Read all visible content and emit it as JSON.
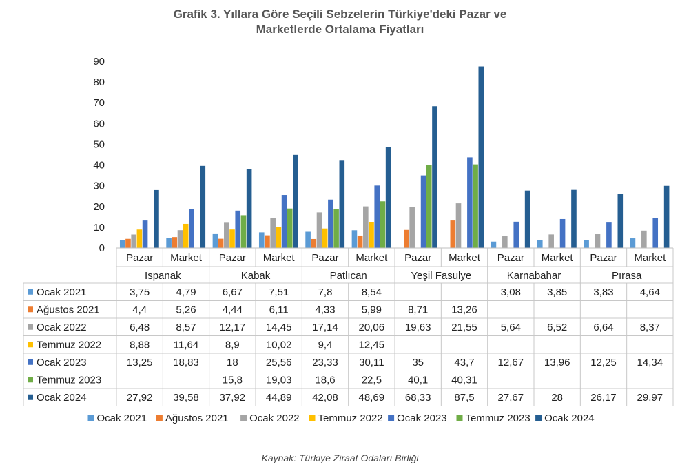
{
  "title_line1": "Grafik 3. Yıllara Göre Seçili Sebzelerin Türkiye'deki Pazar ve",
  "title_line2": "Marketlerde Ortalama Fiyatları",
  "source": "Kaynak: Türkiye Ziraat Odaları Birliği",
  "chart_data": {
    "type": "bar",
    "title": "Grafik 3. Yıllara Göre Seçili Sebzelerin Türkiye'deki Pazar ve Marketlerde Ortalama Fiyatları",
    "ylim": [
      0,
      90
    ],
    "yticks": [
      0,
      10,
      20,
      30,
      40,
      50,
      60,
      70,
      80,
      90
    ],
    "grid": false,
    "legend": "bottom",
    "groups": [
      "Ispanak",
      "Kabak",
      "Patlıcan",
      "Yeşil Fasulye",
      "Karnabahar",
      "Pırasa"
    ],
    "subcategories": [
      "Pazar",
      "Market",
      "Pazar",
      "Market",
      "Pazar",
      "Market",
      "Pazar",
      "Market",
      "Pazar",
      "Market",
      "Pazar",
      "Market"
    ],
    "series": [
      {
        "name": "Ocak 2021",
        "color": "#5B9BD5",
        "values": [
          3.75,
          4.79,
          6.67,
          7.51,
          7.8,
          8.54,
          null,
          null,
          3.08,
          3.85,
          3.83,
          4.64
        ],
        "labels": [
          "3,75",
          "4,79",
          "6,67",
          "7,51",
          "7,8",
          "8,54",
          "",
          "",
          "3,08",
          "3,85",
          "3,83",
          "4,64"
        ]
      },
      {
        "name": "Ağustos 2021",
        "color": "#ED7D31",
        "values": [
          4.4,
          5.26,
          4.44,
          6.11,
          4.33,
          5.99,
          8.71,
          13.26,
          null,
          null,
          null,
          null
        ],
        "labels": [
          "4,4",
          "5,26",
          "4,44",
          "6,11",
          "4,33",
          "5,99",
          "8,71",
          "13,26",
          "",
          "",
          "",
          ""
        ]
      },
      {
        "name": "Ocak 2022",
        "color": "#A5A5A5",
        "values": [
          6.48,
          8.57,
          12.17,
          14.45,
          17.14,
          20.06,
          19.63,
          21.55,
          5.64,
          6.52,
          6.64,
          8.37
        ],
        "labels": [
          "6,48",
          "8,57",
          "12,17",
          "14,45",
          "17,14",
          "20,06",
          "19,63",
          "21,55",
          "5,64",
          "6,52",
          "6,64",
          "8,37"
        ]
      },
      {
        "name": "Temmuz 2022",
        "color": "#FFC000",
        "values": [
          8.88,
          11.64,
          8.9,
          10.02,
          9.4,
          12.45,
          null,
          null,
          null,
          null,
          null,
          null
        ],
        "labels": [
          "8,88",
          "11,64",
          "8,9",
          "10,02",
          "9,4",
          "12,45",
          "",
          "",
          "",
          "",
          "",
          ""
        ]
      },
      {
        "name": "Ocak 2023",
        "color": "#4472C4",
        "values": [
          13.25,
          18.83,
          18,
          25.56,
          23.33,
          30.11,
          35,
          43.7,
          12.67,
          13.96,
          12.25,
          14.34
        ],
        "labels": [
          "13,25",
          "18,83",
          "18",
          "25,56",
          "23,33",
          "30,11",
          "35",
          "43,7",
          "12,67",
          "13,96",
          "12,25",
          "14,34"
        ]
      },
      {
        "name": "Temmuz 2023",
        "color": "#70AD47",
        "values": [
          null,
          null,
          15.8,
          19.03,
          18.6,
          22.5,
          40.1,
          40.31,
          null,
          null,
          null,
          null
        ],
        "labels": [
          "",
          "",
          "15,8",
          "19,03",
          "18,6",
          "22,5",
          "40,1",
          "40,31",
          "",
          "",
          "",
          ""
        ]
      },
      {
        "name": "Ocak 2024",
        "color": "#255E91",
        "values": [
          27.92,
          39.58,
          37.92,
          44.89,
          42.08,
          48.69,
          68.33,
          87.5,
          27.67,
          28,
          26.17,
          29.97
        ],
        "labels": [
          "27,92",
          "39,58",
          "37,92",
          "44,89",
          "42,08",
          "48,69",
          "68,33",
          "87,5",
          "27,67",
          "28",
          "26,17",
          "29,97"
        ]
      }
    ]
  }
}
